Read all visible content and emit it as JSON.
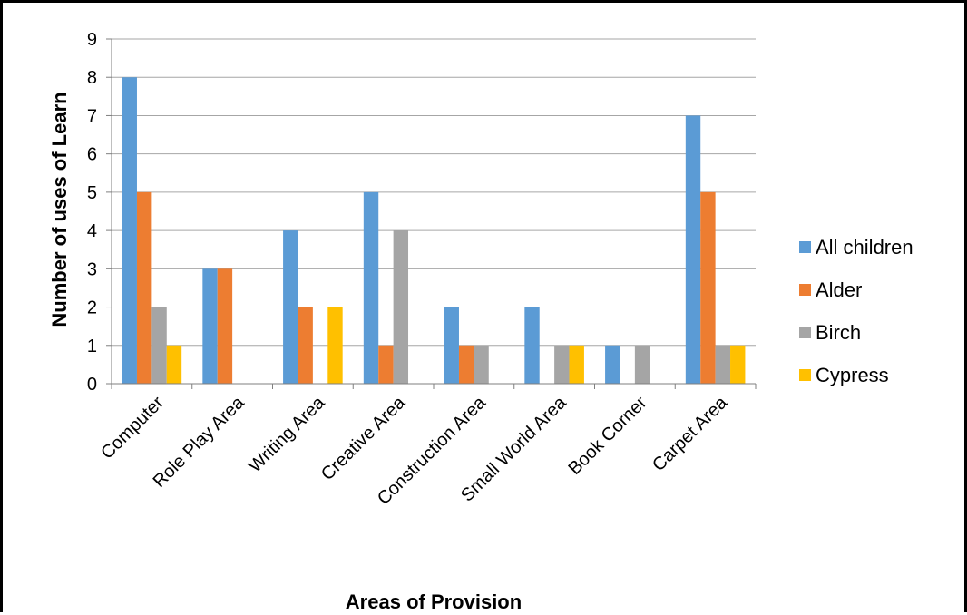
{
  "chart_data": {
    "type": "bar",
    "title": "",
    "xlabel": "Areas of Provision",
    "ylabel": "Number of uses of Learn",
    "ylim": [
      0,
      9
    ],
    "yticks": [
      0,
      1,
      2,
      3,
      4,
      5,
      6,
      7,
      8,
      9
    ],
    "grid": true,
    "legend_position": "right",
    "categories": [
      "Computer",
      "Role Play Area",
      "Writing Area",
      "Creative Area",
      "Construction Area",
      "Small World Area",
      "Book Corner",
      "Carpet Area"
    ],
    "series": [
      {
        "name": "All children",
        "color": "#5B9BD5",
        "values": [
          8,
          3,
          4,
          5,
          2,
          2,
          1,
          7
        ]
      },
      {
        "name": "Alder",
        "color": "#ED7D31",
        "values": [
          5,
          3,
          2,
          1,
          1,
          0,
          0,
          5
        ]
      },
      {
        "name": "Birch",
        "color": "#A5A5A5",
        "values": [
          2,
          0,
          0,
          4,
          1,
          1,
          1,
          1
        ]
      },
      {
        "name": "Cypress",
        "color": "#FFC000",
        "values": [
          1,
          0,
          2,
          0,
          0,
          1,
          0,
          1
        ]
      }
    ]
  }
}
